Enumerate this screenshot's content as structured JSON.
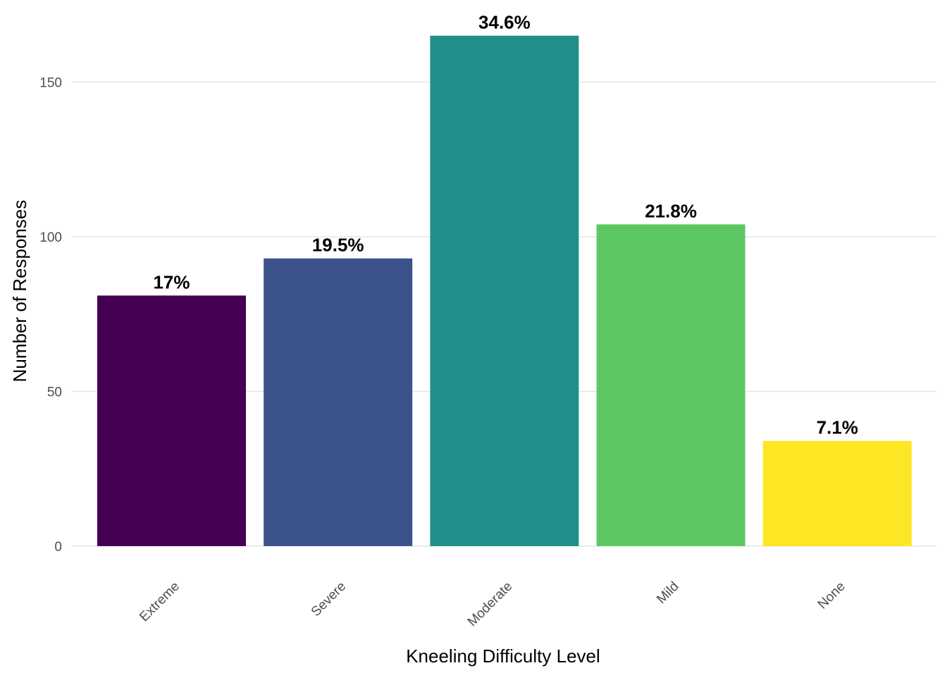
{
  "chart_data": {
    "type": "bar",
    "title": "",
    "xlabel": "Kneeling Difficulty Level",
    "ylabel": "Number of Responses",
    "categories": [
      "Extreme",
      "Severe",
      "Moderate",
      "Mild",
      "None"
    ],
    "values": [
      81,
      93,
      165,
      104,
      34
    ],
    "data_labels": [
      "17%",
      "19.5%",
      "34.6%",
      "21.8%",
      "7.1%"
    ],
    "yticks": [
      0,
      50,
      100,
      150
    ],
    "ytick_labels": [
      "0",
      "50",
      "100",
      "150"
    ],
    "ylim": [
      0,
      173
    ],
    "grid": true,
    "legend": "none",
    "colors": [
      "#440154",
      "#3B528B",
      "#21908C",
      "#5DC863",
      "#FDE725"
    ]
  }
}
